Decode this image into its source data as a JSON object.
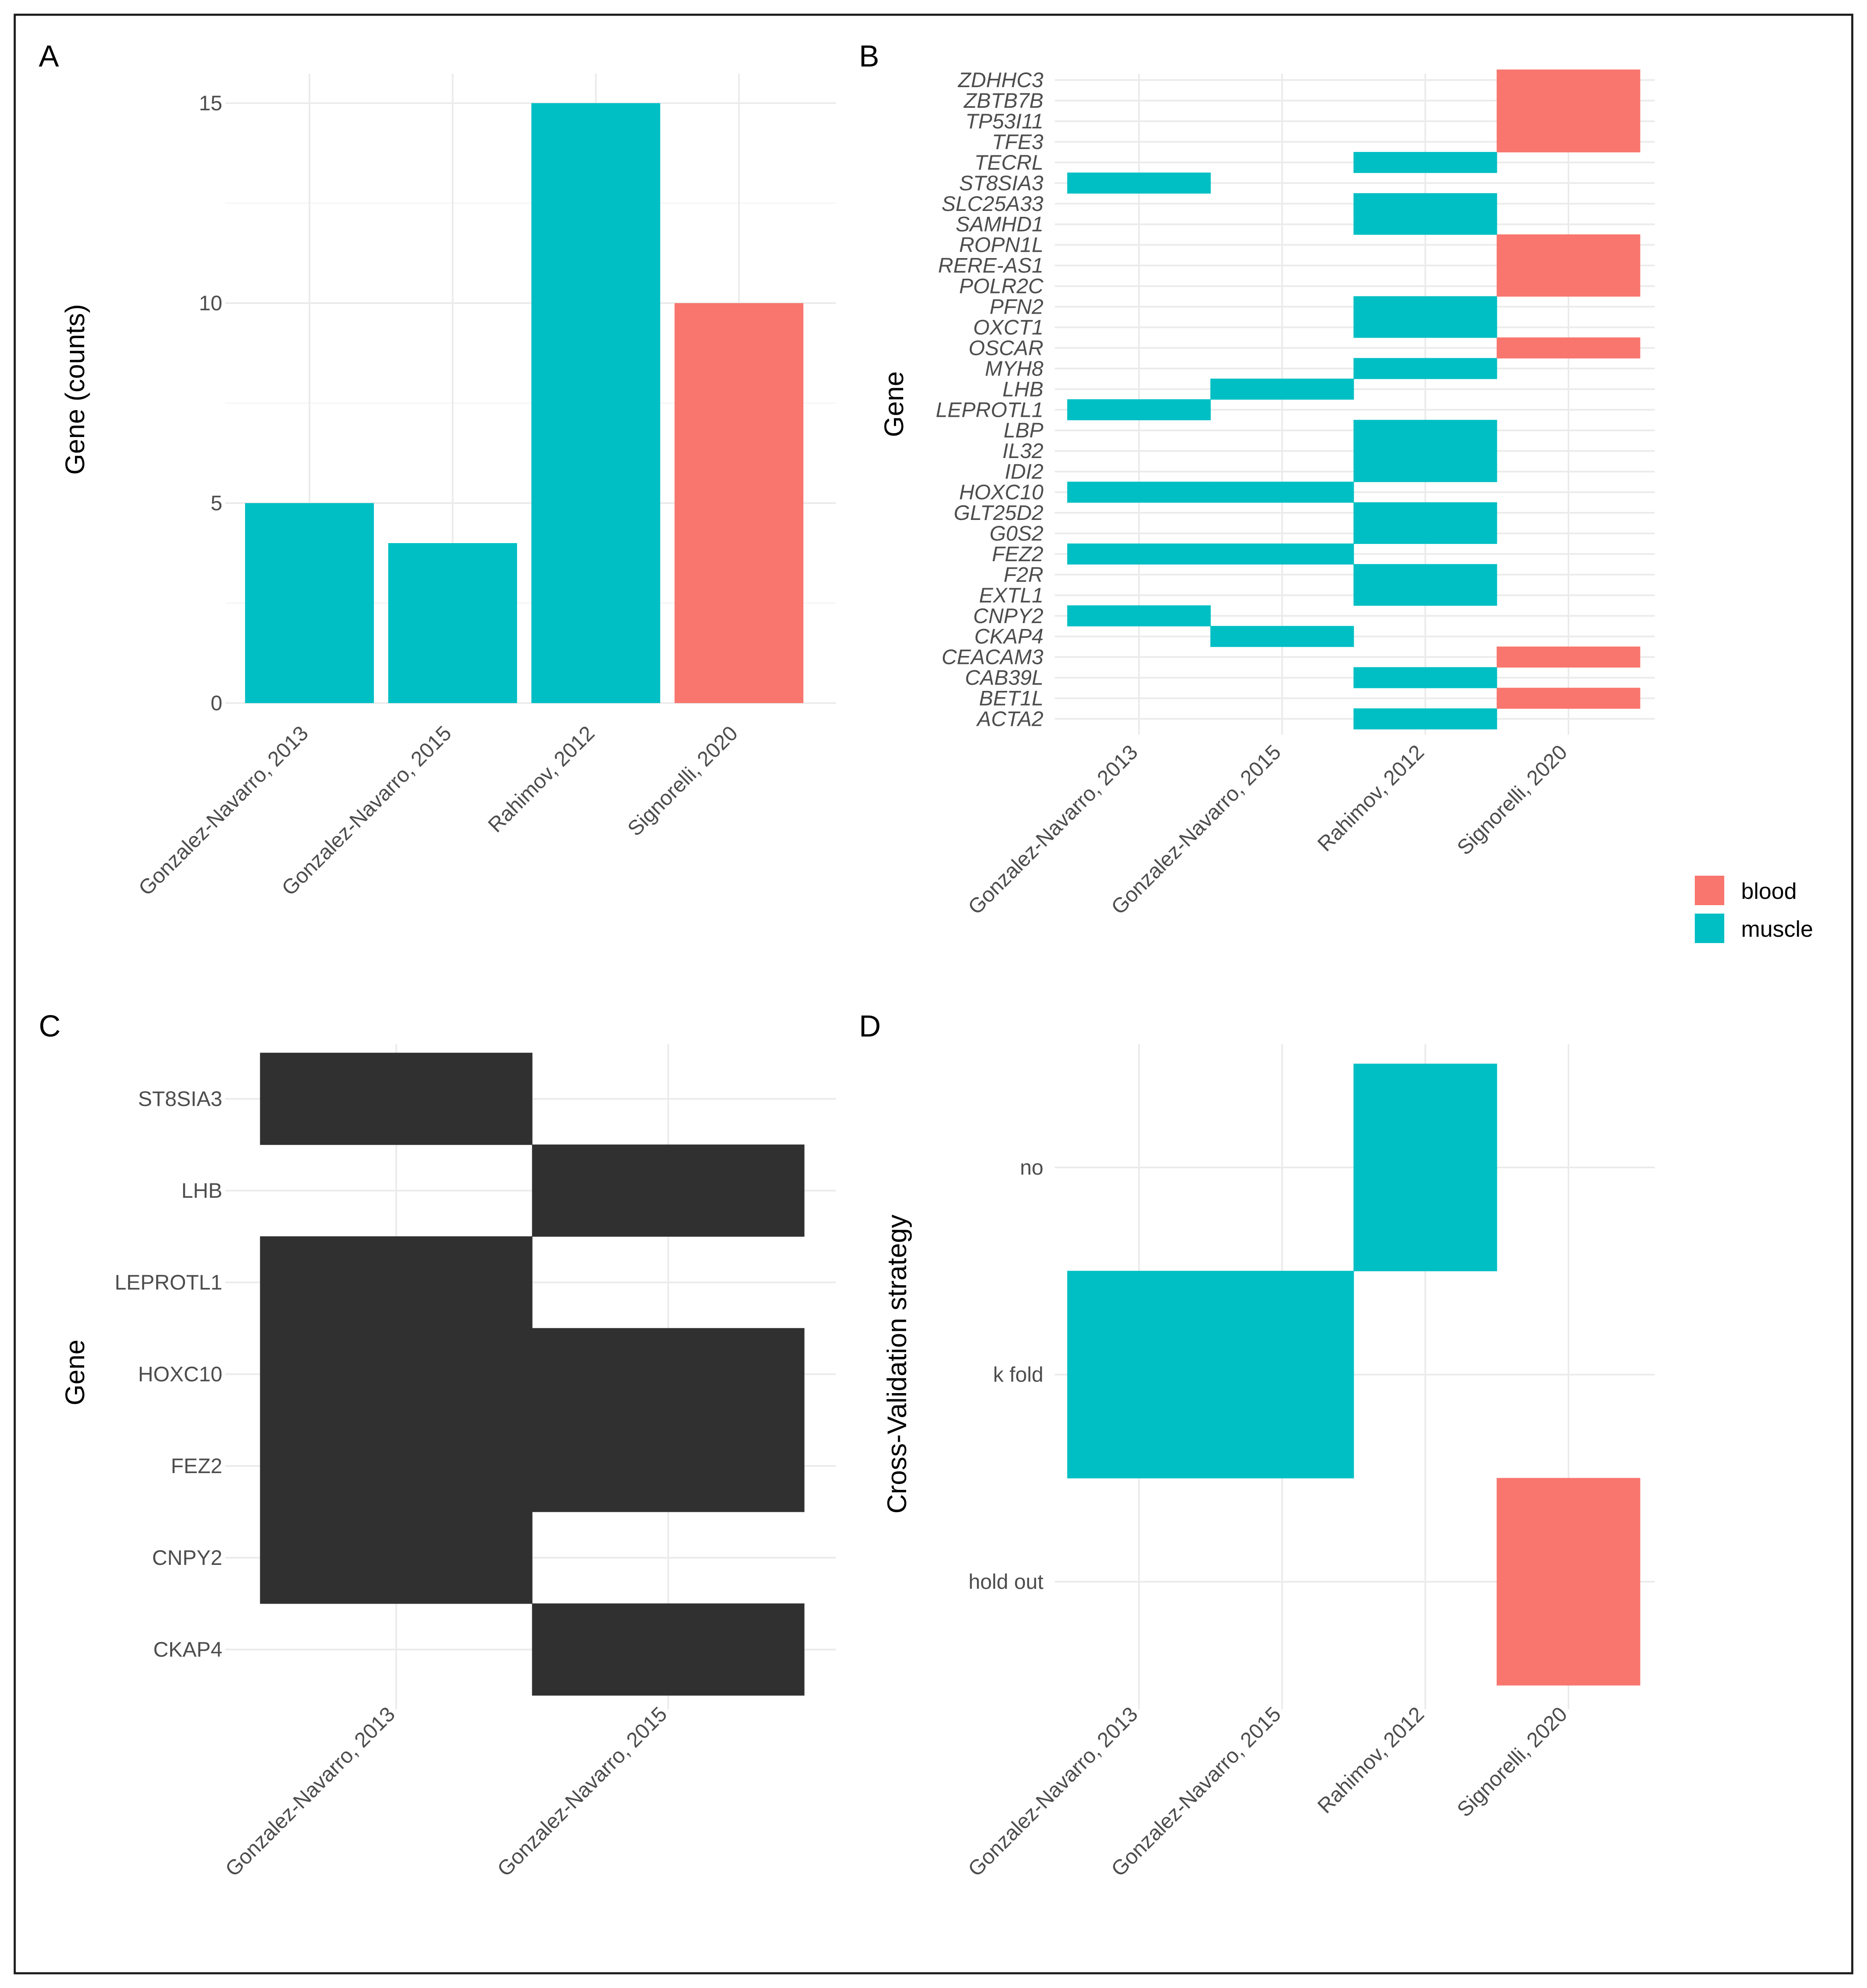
{
  "colors": {
    "muscle": "#00BFC4",
    "blood": "#F8766D",
    "dark": "#303030"
  },
  "legend": {
    "items": [
      {
        "label": "blood",
        "color": "#F8766D"
      },
      {
        "label": "muscle",
        "color": "#00BFC4"
      }
    ]
  },
  "chart_data": [
    {
      "panel": "A",
      "type": "bar",
      "categories": [
        "Gonzalez-Navarro, 2013",
        "Gonzalez-Navarro, 2015",
        "Rahimov, 2012",
        "Signorelli, 2020"
      ],
      "values": [
        5,
        4,
        15,
        10
      ],
      "fill": [
        "muscle",
        "muscle",
        "muscle",
        "blood"
      ],
      "ylabel": "Gene (counts)",
      "yticks": [
        0,
        5,
        10,
        15
      ],
      "ylim": [
        0,
        15.75
      ],
      "grid": true
    },
    {
      "panel": "B",
      "type": "heatmap",
      "xcategories": [
        "Gonzalez-Navarro, 2013",
        "Gonzalez-Navarro, 2015",
        "Rahimov, 2012",
        "Signorelli, 2020"
      ],
      "ycategories": [
        "ACTA2",
        "BET1L",
        "CAB39L",
        "CEACAM3",
        "CKAP4",
        "CNPY2",
        "EXTL1",
        "F2R",
        "FEZ2",
        "G0S2",
        "GLT25D2",
        "HOXC10",
        "IDI2",
        "IL32",
        "LBP",
        "LEPROTL1",
        "LHB",
        "MYH8",
        "OSCAR",
        "OXCT1",
        "PFN2",
        "POLR2C",
        "RERE-AS1",
        "ROPN1L",
        "SAMHD1",
        "SLC25A33",
        "ST8SIA3",
        "TECRL",
        "TFE3",
        "TP53I11",
        "ZBTB7B",
        "ZDHHC3"
      ],
      "ylabel": "Gene",
      "cells": [
        {
          "x": "Rahimov, 2012",
          "y": "ACTA2",
          "fill": "muscle"
        },
        {
          "x": "Signorelli, 2020",
          "y": "BET1L",
          "fill": "blood"
        },
        {
          "x": "Rahimov, 2012",
          "y": "CAB39L",
          "fill": "muscle"
        },
        {
          "x": "Signorelli, 2020",
          "y": "CEACAM3",
          "fill": "blood"
        },
        {
          "x": "Gonzalez-Navarro, 2015",
          "y": "CKAP4",
          "fill": "muscle"
        },
        {
          "x": "Gonzalez-Navarro, 2013",
          "y": "CNPY2",
          "fill": "muscle"
        },
        {
          "x": "Rahimov, 2012",
          "y": "EXTL1",
          "fill": "muscle"
        },
        {
          "x": "Rahimov, 2012",
          "y": "F2R",
          "fill": "muscle"
        },
        {
          "x": "Rahimov, 2012",
          "y": "F2R",
          "fill": "muscle"
        },
        {
          "x": "Gonzalez-Navarro, 2013",
          "y": "FEZ2",
          "fill": "muscle"
        },
        {
          "x": "Gonzalez-Navarro, 2015",
          "y": "FEZ2",
          "fill": "muscle"
        },
        {
          "x": "Rahimov, 2012",
          "y": "G0S2",
          "fill": "muscle"
        },
        {
          "x": "Rahimov, 2012",
          "y": "GLT25D2",
          "fill": "muscle"
        },
        {
          "x": "Gonzalez-Navarro, 2013",
          "y": "HOXC10",
          "fill": "muscle"
        },
        {
          "x": "Gonzalez-Navarro, 2015",
          "y": "HOXC10",
          "fill": "muscle"
        },
        {
          "x": "Rahimov, 2012",
          "y": "IDI2",
          "fill": "muscle"
        },
        {
          "x": "Rahimov, 2012",
          "y": "IL32",
          "fill": "muscle"
        },
        {
          "x": "Rahimov, 2012",
          "y": "LBP",
          "fill": "muscle"
        },
        {
          "x": "Gonzalez-Navarro, 2013",
          "y": "LEPROTL1",
          "fill": "muscle"
        },
        {
          "x": "Gonzalez-Navarro, 2015",
          "y": "LHB",
          "fill": "muscle"
        },
        {
          "x": "Rahimov, 2012",
          "y": "MYH8",
          "fill": "muscle"
        },
        {
          "x": "Signorelli, 2020",
          "y": "OSCAR",
          "fill": "blood"
        },
        {
          "x": "Rahimov, 2012",
          "y": "OXCT1",
          "fill": "muscle"
        },
        {
          "x": "Rahimov, 2012",
          "y": "PFN2",
          "fill": "muscle"
        },
        {
          "x": "Signorelli, 2020",
          "y": "POLR2C",
          "fill": "blood"
        },
        {
          "x": "Signorelli, 2020",
          "y": "RERE-AS1",
          "fill": "blood"
        },
        {
          "x": "Signorelli, 2020",
          "y": "ROPN1L",
          "fill": "blood"
        },
        {
          "x": "Rahimov, 2012",
          "y": "SAMHD1",
          "fill": "muscle"
        },
        {
          "x": "Rahimov, 2012",
          "y": "SLC25A33",
          "fill": "muscle"
        },
        {
          "x": "Gonzalez-Navarro, 2013",
          "y": "ST8SIA3",
          "fill": "muscle"
        },
        {
          "x": "Rahimov, 2012",
          "y": "TECRL",
          "fill": "muscle"
        },
        {
          "x": "Signorelli, 2020",
          "y": "TFE3",
          "fill": "blood"
        },
        {
          "x": "Signorelli, 2020",
          "y": "TP53I11",
          "fill": "blood"
        },
        {
          "x": "Signorelli, 2020",
          "y": "ZBTB7B",
          "fill": "blood"
        },
        {
          "x": "Signorelli, 2020",
          "y": "ZDHHC3",
          "fill": "blood"
        }
      ]
    },
    {
      "panel": "C",
      "type": "heatmap",
      "xcategories": [
        "Gonzalez-Navarro, 2013",
        "Gonzalez-Navarro, 2015"
      ],
      "ycategories": [
        "CKAP4",
        "CNPY2",
        "FEZ2",
        "HOXC10",
        "LEPROTL1",
        "LHB",
        "ST8SIA3"
      ],
      "ylabel": "Gene",
      "cells": [
        {
          "x": "Gonzalez-Navarro, 2015",
          "y": "CKAP4",
          "fill": "dark"
        },
        {
          "x": "Gonzalez-Navarro, 2013",
          "y": "CNPY2",
          "fill": "dark"
        },
        {
          "x": "Gonzalez-Navarro, 2013",
          "y": "FEZ2",
          "fill": "dark"
        },
        {
          "x": "Gonzalez-Navarro, 2015",
          "y": "FEZ2",
          "fill": "dark"
        },
        {
          "x": "Gonzalez-Navarro, 2013",
          "y": "HOXC10",
          "fill": "dark"
        },
        {
          "x": "Gonzalez-Navarro, 2015",
          "y": "HOXC10",
          "fill": "dark"
        },
        {
          "x": "Gonzalez-Navarro, 2013",
          "y": "LEPROTL1",
          "fill": "dark"
        },
        {
          "x": "Gonzalez-Navarro, 2015",
          "y": "LHB",
          "fill": "dark"
        },
        {
          "x": "Gonzalez-Navarro, 2013",
          "y": "ST8SIA3",
          "fill": "dark"
        }
      ]
    },
    {
      "panel": "D",
      "type": "heatmap",
      "xcategories": [
        "Gonzalez-Navarro, 2013",
        "Gonzalez-Navarro, 2015",
        "Rahimov, 2012",
        "Signorelli, 2020"
      ],
      "ycategories": [
        "hold out",
        "k fold",
        "no"
      ],
      "ylabel": "Cross-Validation strategy",
      "cells": [
        {
          "x": "Gonzalez-Navarro, 2013",
          "y": "k fold",
          "fill": "muscle"
        },
        {
          "x": "Gonzalez-Navarro, 2015",
          "y": "k fold",
          "fill": "muscle"
        },
        {
          "x": "Rahimov, 2012",
          "y": "no",
          "fill": "muscle"
        },
        {
          "x": "Signorelli, 2020",
          "y": "hold out",
          "fill": "blood"
        }
      ]
    }
  ]
}
